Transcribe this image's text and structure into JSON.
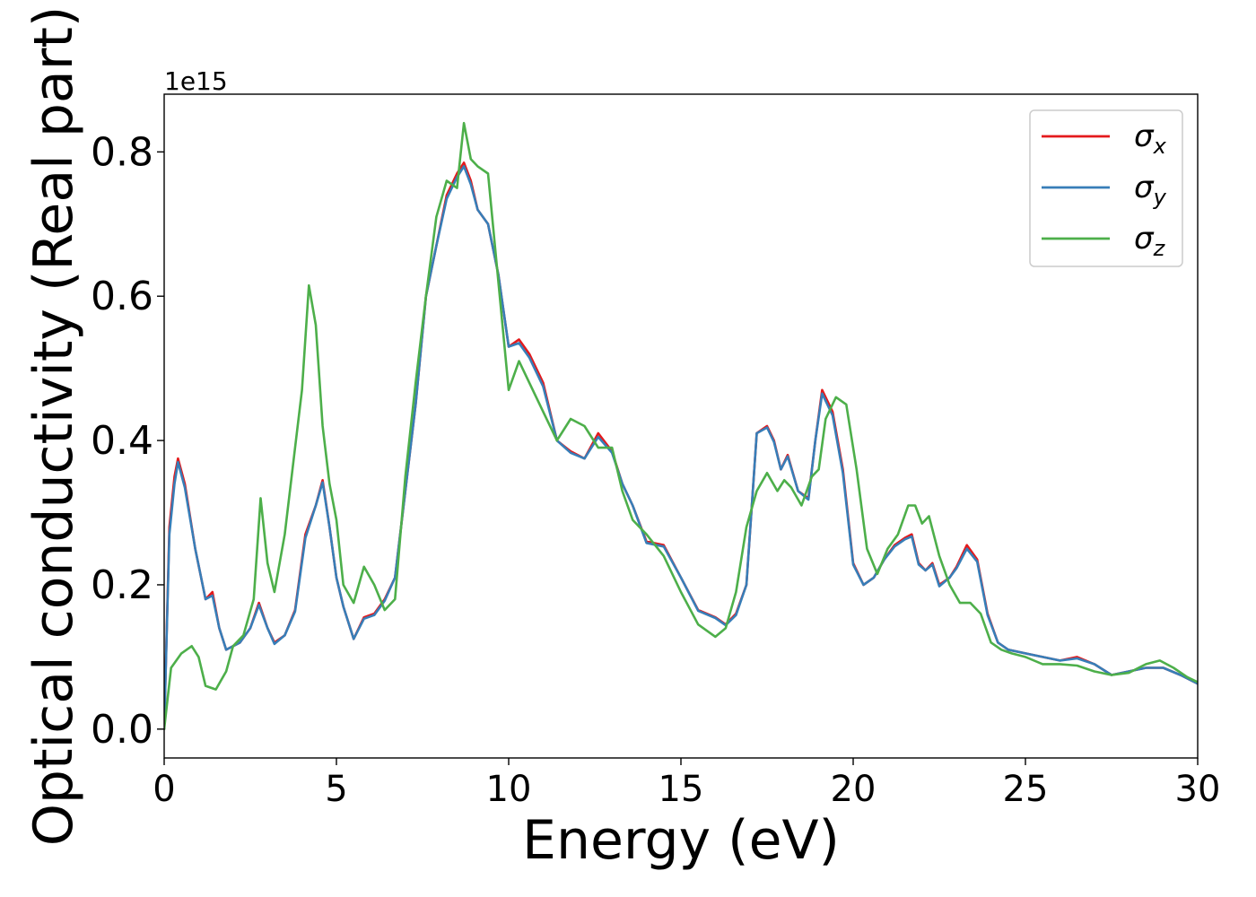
{
  "chart_data": {
    "type": "line",
    "title": "",
    "xlabel": "Energy (eV)",
    "ylabel": "Optical conductivity (Real part)",
    "y_offset_label": "1e15",
    "xlim": [
      0,
      30
    ],
    "ylim": [
      -0.04,
      0.88
    ],
    "x_ticks": [
      0,
      5,
      10,
      15,
      20,
      25,
      30
    ],
    "x_tick_labels": [
      "0",
      "5",
      "10",
      "15",
      "20",
      "25",
      "30"
    ],
    "y_ticks": [
      0.0,
      0.2,
      0.4,
      0.6,
      0.8
    ],
    "y_tick_labels": [
      "0.0",
      "0.2",
      "0.4",
      "0.6",
      "0.8"
    ],
    "grid": false,
    "legend_position": "top-right",
    "series": [
      {
        "name": "σx",
        "color": "#e41a1c",
        "x": [
          0,
          0.15,
          0.3,
          0.4,
          0.6,
          0.9,
          1.2,
          1.4,
          1.6,
          1.8,
          2.0,
          2.2,
          2.5,
          2.75,
          3.0,
          3.2,
          3.5,
          3.8,
          4.1,
          4.4,
          4.6,
          4.8,
          5.0,
          5.2,
          5.5,
          5.8,
          6.1,
          6.4,
          6.7,
          7.0,
          7.3,
          7.6,
          7.9,
          8.2,
          8.5,
          8.7,
          8.9,
          9.1,
          9.4,
          9.7,
          10.0,
          10.3,
          10.6,
          11.0,
          11.4,
          11.8,
          12.2,
          12.6,
          13.0,
          13.3,
          13.6,
          14.0,
          14.5,
          15.0,
          15.5,
          16.0,
          16.3,
          16.6,
          16.9,
          17.2,
          17.5,
          17.7,
          17.9,
          18.1,
          18.4,
          18.7,
          18.9,
          19.1,
          19.4,
          19.7,
          20.0,
          20.3,
          20.6,
          20.9,
          21.2,
          21.5,
          21.7,
          21.9,
          22.1,
          22.3,
          22.5,
          22.8,
          23.0,
          23.3,
          23.6,
          23.9,
          24.2,
          24.5,
          25.0,
          25.5,
          26.0,
          26.5,
          27.0,
          27.5,
          28.0,
          28.5,
          29.0,
          29.5,
          30.0
        ],
        "values": [
          0.0,
          0.28,
          0.35,
          0.375,
          0.34,
          0.25,
          0.18,
          0.19,
          0.14,
          0.11,
          0.115,
          0.12,
          0.14,
          0.175,
          0.14,
          0.12,
          0.13,
          0.165,
          0.27,
          0.31,
          0.345,
          0.28,
          0.21,
          0.17,
          0.125,
          0.155,
          0.16,
          0.18,
          0.21,
          0.33,
          0.45,
          0.6,
          0.67,
          0.74,
          0.77,
          0.785,
          0.76,
          0.72,
          0.7,
          0.63,
          0.53,
          0.54,
          0.52,
          0.48,
          0.4,
          0.385,
          0.375,
          0.41,
          0.385,
          0.34,
          0.31,
          0.26,
          0.255,
          0.21,
          0.165,
          0.155,
          0.145,
          0.16,
          0.2,
          0.41,
          0.42,
          0.4,
          0.36,
          0.38,
          0.33,
          0.32,
          0.4,
          0.47,
          0.44,
          0.36,
          0.23,
          0.2,
          0.21,
          0.235,
          0.255,
          0.265,
          0.27,
          0.23,
          0.22,
          0.23,
          0.2,
          0.21,
          0.225,
          0.255,
          0.235,
          0.16,
          0.12,
          0.11,
          0.105,
          0.1,
          0.095,
          0.1,
          0.09,
          0.075,
          0.08,
          0.085,
          0.085,
          0.075,
          0.063
        ]
      },
      {
        "name": "σy",
        "color": "#377eb8",
        "x": [
          0,
          0.15,
          0.3,
          0.4,
          0.6,
          0.9,
          1.2,
          1.4,
          1.6,
          1.8,
          2.0,
          2.2,
          2.5,
          2.75,
          3.0,
          3.2,
          3.5,
          3.8,
          4.1,
          4.4,
          4.6,
          4.8,
          5.0,
          5.2,
          5.5,
          5.8,
          6.1,
          6.4,
          6.7,
          7.0,
          7.3,
          7.6,
          7.9,
          8.2,
          8.5,
          8.7,
          8.9,
          9.1,
          9.4,
          9.7,
          10.0,
          10.3,
          10.6,
          11.0,
          11.4,
          11.8,
          12.2,
          12.6,
          13.0,
          13.3,
          13.6,
          14.0,
          14.5,
          15.0,
          15.5,
          16.0,
          16.3,
          16.6,
          16.9,
          17.2,
          17.5,
          17.7,
          17.9,
          18.1,
          18.4,
          18.7,
          18.9,
          19.1,
          19.4,
          19.7,
          20.0,
          20.3,
          20.6,
          20.9,
          21.2,
          21.5,
          21.7,
          21.9,
          22.1,
          22.3,
          22.5,
          22.8,
          23.0,
          23.3,
          23.6,
          23.9,
          24.2,
          24.5,
          25.0,
          25.5,
          26.0,
          26.5,
          27.0,
          27.5,
          28.0,
          28.5,
          29.0,
          29.5,
          30.0
        ],
        "values": [
          0.0,
          0.27,
          0.34,
          0.37,
          0.335,
          0.25,
          0.18,
          0.185,
          0.14,
          0.11,
          0.115,
          0.12,
          0.14,
          0.172,
          0.14,
          0.118,
          0.13,
          0.163,
          0.265,
          0.31,
          0.342,
          0.28,
          0.21,
          0.17,
          0.125,
          0.153,
          0.158,
          0.178,
          0.21,
          0.33,
          0.45,
          0.6,
          0.67,
          0.735,
          0.765,
          0.78,
          0.755,
          0.72,
          0.7,
          0.63,
          0.53,
          0.535,
          0.515,
          0.475,
          0.4,
          0.383,
          0.375,
          0.405,
          0.383,
          0.34,
          0.31,
          0.258,
          0.253,
          0.21,
          0.164,
          0.154,
          0.144,
          0.158,
          0.2,
          0.41,
          0.418,
          0.398,
          0.36,
          0.378,
          0.33,
          0.318,
          0.4,
          0.465,
          0.435,
          0.355,
          0.228,
          0.2,
          0.21,
          0.235,
          0.253,
          0.263,
          0.267,
          0.228,
          0.22,
          0.228,
          0.198,
          0.21,
          0.223,
          0.25,
          0.232,
          0.158,
          0.12,
          0.11,
          0.105,
          0.1,
          0.095,
          0.098,
          0.09,
          0.075,
          0.08,
          0.085,
          0.085,
          0.075,
          0.063
        ]
      },
      {
        "name": "σz",
        "color": "#4daf4a",
        "x": [
          0,
          0.2,
          0.5,
          0.8,
          1.0,
          1.2,
          1.5,
          1.8,
          2.0,
          2.3,
          2.6,
          2.8,
          3.0,
          3.2,
          3.5,
          3.8,
          4.0,
          4.2,
          4.4,
          4.6,
          4.8,
          5.0,
          5.2,
          5.5,
          5.8,
          6.1,
          6.4,
          6.7,
          7.0,
          7.3,
          7.6,
          7.9,
          8.2,
          8.5,
          8.7,
          8.9,
          9.1,
          9.4,
          9.7,
          10.0,
          10.3,
          10.6,
          11.0,
          11.4,
          11.8,
          12.2,
          12.6,
          13.0,
          13.3,
          13.6,
          14.0,
          14.5,
          15.0,
          15.5,
          16.0,
          16.3,
          16.6,
          16.9,
          17.2,
          17.5,
          17.8,
          18.0,
          18.2,
          18.5,
          18.8,
          19.0,
          19.2,
          19.5,
          19.8,
          20.1,
          20.4,
          20.7,
          21.0,
          21.3,
          21.6,
          21.8,
          22.0,
          22.2,
          22.5,
          22.8,
          23.1,
          23.4,
          23.7,
          24.0,
          24.3,
          24.6,
          25.0,
          25.5,
          26.0,
          26.5,
          27.0,
          27.5,
          28.0,
          28.5,
          28.9,
          29.3,
          29.7,
          30.0
        ],
        "values": [
          0.0,
          0.085,
          0.105,
          0.115,
          0.1,
          0.06,
          0.055,
          0.08,
          0.115,
          0.13,
          0.18,
          0.32,
          0.23,
          0.19,
          0.27,
          0.39,
          0.47,
          0.615,
          0.56,
          0.42,
          0.34,
          0.29,
          0.2,
          0.175,
          0.225,
          0.2,
          0.165,
          0.18,
          0.35,
          0.48,
          0.6,
          0.71,
          0.76,
          0.75,
          0.84,
          0.79,
          0.78,
          0.77,
          0.62,
          0.47,
          0.51,
          0.48,
          0.44,
          0.4,
          0.43,
          0.42,
          0.39,
          0.39,
          0.33,
          0.29,
          0.27,
          0.24,
          0.19,
          0.145,
          0.128,
          0.14,
          0.19,
          0.28,
          0.33,
          0.355,
          0.33,
          0.345,
          0.335,
          0.31,
          0.35,
          0.36,
          0.43,
          0.46,
          0.45,
          0.36,
          0.25,
          0.215,
          0.25,
          0.27,
          0.31,
          0.31,
          0.285,
          0.295,
          0.24,
          0.2,
          0.175,
          0.175,
          0.16,
          0.12,
          0.11,
          0.105,
          0.1,
          0.09,
          0.09,
          0.088,
          0.08,
          0.075,
          0.078,
          0.09,
          0.095,
          0.085,
          0.072,
          0.065
        ]
      }
    ]
  }
}
